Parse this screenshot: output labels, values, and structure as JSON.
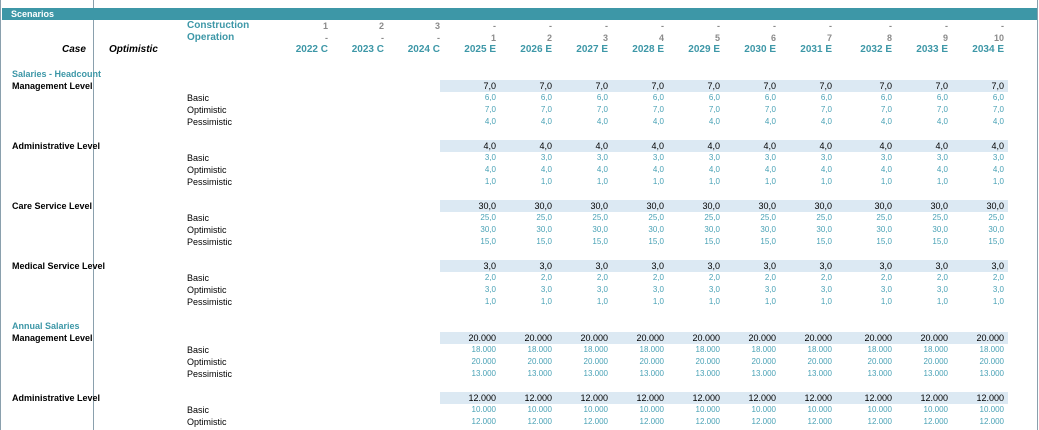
{
  "sheet_title": "Scenarios",
  "case_label": "Case",
  "case_value": "Optimistic",
  "header": {
    "construction_label": "Construction",
    "operation_label": "Operation",
    "construction": [
      "1",
      "2",
      "3",
      "-",
      "-",
      "-",
      "-",
      "-",
      "-",
      "-",
      "-",
      "-",
      "-"
    ],
    "operation": [
      "-",
      "-",
      "-",
      "1",
      "2",
      "3",
      "4",
      "5",
      "6",
      "7",
      "8",
      "9",
      "10"
    ],
    "years": [
      "2022 C",
      "2023 C",
      "2024 C",
      "2025 E",
      "2026 E",
      "2027 E",
      "2028 E",
      "2029 E",
      "2030 E",
      "2031 E",
      "2032 E",
      "2033 E",
      "2034 E"
    ]
  },
  "sections": [
    {
      "title": "Salaries - Headcount",
      "groups": [
        {
          "label": "Management Level",
          "value": "7,0",
          "rows": [
            {
              "label": "Basic",
              "value": "6,0"
            },
            {
              "label": "Optimistic",
              "value": "7,0"
            },
            {
              "label": "Pessimistic",
              "value": "4,0"
            }
          ]
        },
        {
          "label": "Administrative Level",
          "value": "4,0",
          "rows": [
            {
              "label": "Basic",
              "value": "3,0"
            },
            {
              "label": "Optimistic",
              "value": "4,0"
            },
            {
              "label": "Pessimistic",
              "value": "1,0"
            }
          ]
        },
        {
          "label": "Care Service Level",
          "value": "30,0",
          "rows": [
            {
              "label": "Basic",
              "value": "25,0"
            },
            {
              "label": "Optimistic",
              "value": "30,0"
            },
            {
              "label": "Pessimistic",
              "value": "15,0"
            }
          ]
        },
        {
          "label": "Medical Service Level",
          "value": "3,0",
          "rows": [
            {
              "label": "Basic",
              "value": "2,0"
            },
            {
              "label": "Optimistic",
              "value": "3,0"
            },
            {
              "label": "Pessimistic",
              "value": "1,0"
            }
          ]
        }
      ]
    },
    {
      "title": "Annual Salaries",
      "groups": [
        {
          "label": "Management Level",
          "value": "20.000",
          "rows": [
            {
              "label": "Basic",
              "value": "18.000"
            },
            {
              "label": "Optimistic",
              "value": "20.000"
            },
            {
              "label": "Pessimistic",
              "value": "13.000"
            }
          ]
        },
        {
          "label": "Administrative Level",
          "value": "12.000",
          "rows": [
            {
              "label": "Basic",
              "value": "10.000"
            },
            {
              "label": "Optimistic",
              "value": "12.000"
            }
          ]
        }
      ]
    }
  ]
}
